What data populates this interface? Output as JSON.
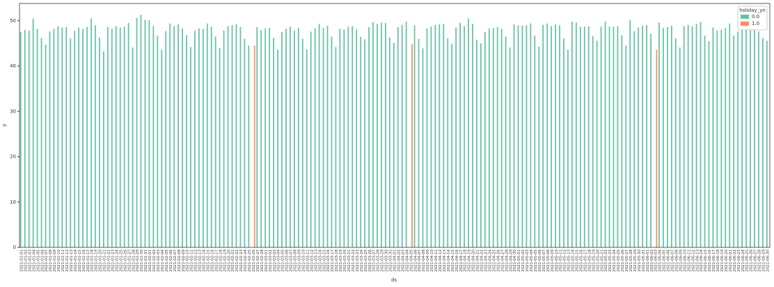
{
  "chart_data": {
    "type": "bar",
    "x_label": "ds",
    "y_label": "y",
    "legend_title": "holiday_yn",
    "legend_position": "upper right",
    "categories": [
      "2021-01-01",
      "2021-01-02",
      "2021-01-03",
      "2021-01-04",
      "2021-01-05",
      "2021-01-06",
      "2021-01-07",
      "2021-01-08",
      "2021-01-09",
      "2021-01-10",
      "2021-01-11",
      "2021-01-12",
      "2021-01-13",
      "2021-01-14",
      "2021-01-15",
      "2021-01-16",
      "2021-01-17",
      "2021-01-18",
      "2021-01-19",
      "2021-01-20",
      "2021-01-21",
      "2021-01-22",
      "2021-01-23",
      "2021-01-24",
      "2021-01-25",
      "2021-01-26",
      "2021-01-27",
      "2021-01-28",
      "2021-01-29",
      "2021-01-30",
      "2021-01-31",
      "2021-02-01",
      "2021-02-02",
      "2021-02-03",
      "2021-02-04",
      "2021-02-05",
      "2021-02-06",
      "2021-02-07",
      "2021-02-08",
      "2021-02-09",
      "2021-02-10",
      "2021-02-11",
      "2021-02-12",
      "2021-02-13",
      "2021-02-14",
      "2021-02-15",
      "2021-02-16",
      "2021-02-17",
      "2021-02-18",
      "2021-02-19",
      "2021-02-20",
      "2021-02-21",
      "2021-02-22",
      "2021-02-23",
      "2021-02-24",
      "2021-02-25",
      "2021-02-26",
      "2021-02-27",
      "2021-02-28",
      "2021-03-01",
      "2021-03-02",
      "2021-03-03",
      "2021-03-04",
      "2021-03-05",
      "2021-03-06",
      "2021-03-07",
      "2021-03-08",
      "2021-03-09",
      "2021-03-10",
      "2021-03-11",
      "2021-03-12",
      "2021-03-13",
      "2021-03-14",
      "2021-03-15",
      "2021-03-16",
      "2021-03-17",
      "2021-03-18",
      "2021-03-19",
      "2021-03-20",
      "2021-03-21",
      "2021-03-22",
      "2021-03-23",
      "2021-03-24",
      "2021-03-25",
      "2021-03-26",
      "2021-03-27",
      "2021-03-28",
      "2021-03-29",
      "2021-03-30",
      "2021-03-31",
      "2021-04-01",
      "2021-04-02",
      "2021-04-03",
      "2021-04-04",
      "2021-04-05",
      "2021-04-06",
      "2021-04-07",
      "2021-04-08",
      "2021-04-09",
      "2021-04-10",
      "2021-04-11",
      "2021-04-12",
      "2021-04-13",
      "2021-04-14",
      "2021-04-15",
      "2021-04-16",
      "2021-04-17",
      "2021-04-18",
      "2021-04-19",
      "2021-04-20",
      "2021-04-21",
      "2021-04-22",
      "2021-04-23",
      "2021-04-24",
      "2021-04-25",
      "2021-04-26",
      "2021-04-27",
      "2021-04-28",
      "2021-04-29",
      "2021-04-30",
      "2021-05-01",
      "2021-05-02",
      "2021-05-03",
      "2021-05-04",
      "2021-05-05",
      "2021-05-06",
      "2021-05-07",
      "2021-05-08",
      "2021-05-09",
      "2021-05-10",
      "2021-05-11",
      "2021-05-12",
      "2021-05-13",
      "2021-05-14",
      "2021-05-15",
      "2021-05-16",
      "2021-05-17",
      "2021-05-18",
      "2021-05-19",
      "2021-05-20",
      "2021-05-21",
      "2021-05-22",
      "2021-05-23",
      "2021-05-24",
      "2021-05-25",
      "2021-05-26",
      "2021-05-27",
      "2021-05-28",
      "2021-05-29",
      "2021-05-30",
      "2021-05-31",
      "2021-06-01",
      "2021-06-02",
      "2021-06-03",
      "2021-06-04",
      "2021-06-05",
      "2021-06-06",
      "2021-06-07",
      "2021-06-08",
      "2021-06-09",
      "2021-06-10",
      "2021-06-11",
      "2021-06-12",
      "2021-06-13",
      "2021-06-14",
      "2021-06-15",
      "2021-06-16",
      "2021-06-17",
      "2021-06-18",
      "2021-06-19",
      "2021-06-20",
      "2021-06-21",
      "2021-06-22",
      "2021-06-23",
      "2021-06-24",
      "2021-06-25",
      "2021-06-26",
      "2021-06-27",
      "2021-06-28",
      "2021-06-29",
      "2021-06-30"
    ],
    "series": [
      {
        "name": "0.0",
        "color": "#66c2a5",
        "values": [
          47.5,
          48,
          47.8,
          50.5,
          48.2,
          46.2,
          44.7,
          47.6,
          48.2,
          48.8,
          48.5,
          48.6,
          46.1,
          47.8,
          48.5,
          48.2,
          48.6,
          50.5,
          49,
          46.3,
          43.2,
          48.6,
          48.2,
          48.8,
          48.5,
          48.7,
          49.5,
          44.1,
          50.6,
          51.3,
          50.2,
          50.1,
          48.8,
          46.7,
          43.6,
          47.7,
          49.4,
          48.8,
          49.2,
          48.3,
          46.8,
          44.2,
          47.8,
          48.3,
          48.2,
          49.4,
          48.7,
          46.5,
          44,
          47.8,
          48.8,
          49,
          49.2,
          48.6,
          46,
          44.5,
          null,
          48.6,
          47.9,
          48.3,
          48.4,
          46.2,
          43.6,
          47.5,
          48.2,
          48.7,
          47.8,
          48.4,
          46,
          43.7,
          47.6,
          48.3,
          49.3,
          48.4,
          48.9,
          46.5,
          44.2,
          48.2,
          48.1,
          48.7,
          48.8,
          48.1,
          46.4,
          45.9,
          48.6,
          49.7,
          49.3,
          49.6,
          49.5,
          46.3,
          45.1,
          48.6,
          49.1,
          49.8,
          null,
          49,
          46,
          43.9,
          48.3,
          48.7,
          49.1,
          49.2,
          49.3,
          46.1,
          44.9,
          48.5,
          49.5,
          48.8,
          50.5,
          49.3,
          45.8,
          45,
          47.5,
          48.3,
          48.4,
          48.6,
          48.2,
          46.5,
          44.1,
          49.2,
          49,
          48.9,
          49,
          49.4,
          46.7,
          44.3,
          49.1,
          49.4,
          48.8,
          49.2,
          49,
          46.1,
          43.6,
          49.8,
          49.6,
          48.7,
          48.7,
          48.8,
          46.6,
          45.6,
          48.7,
          49.8,
          48.7,
          48.7,
          48.8,
          46.8,
          44.5,
          50.1,
          47.7,
          48.5,
          48.9,
          49,
          47.1,
          null,
          49.6,
          48.4,
          48.6,
          48.9,
          46.1,
          44.1,
          48.8,
          49.1,
          48.8,
          49.3,
          49.7,
          46.7,
          45.5,
          48.5,
          47.8,
          48,
          48.4,
          49.4,
          46.7,
          47.6,
          48.2,
          48,
          48.4,
          49.5,
          47.6,
          46.2,
          45.6
        ]
      },
      {
        "name": "1.0",
        "color": "#fc8d62",
        "values": [
          null,
          null,
          null,
          null,
          null,
          null,
          null,
          null,
          null,
          null,
          null,
          null,
          null,
          null,
          null,
          null,
          null,
          null,
          null,
          null,
          null,
          null,
          null,
          null,
          null,
          null,
          null,
          null,
          null,
          null,
          null,
          null,
          null,
          null,
          null,
          null,
          null,
          null,
          null,
          null,
          null,
          null,
          null,
          null,
          null,
          null,
          null,
          null,
          null,
          null,
          null,
          null,
          null,
          null,
          null,
          null,
          44.5,
          null,
          null,
          null,
          null,
          null,
          null,
          null,
          null,
          null,
          null,
          null,
          null,
          null,
          null,
          null,
          null,
          null,
          null,
          null,
          null,
          null,
          null,
          null,
          null,
          null,
          null,
          null,
          null,
          null,
          null,
          null,
          null,
          null,
          null,
          null,
          null,
          null,
          44.8,
          null,
          null,
          null,
          null,
          null,
          null,
          null,
          null,
          null,
          null,
          null,
          null,
          null,
          null,
          null,
          null,
          null,
          null,
          null,
          null,
          null,
          null,
          null,
          null,
          null,
          null,
          null,
          null,
          null,
          null,
          null,
          null,
          null,
          null,
          null,
          null,
          null,
          null,
          null,
          null,
          null,
          null,
          null,
          null,
          null,
          null,
          null,
          null,
          null,
          null,
          null,
          null,
          null,
          null,
          null,
          null,
          null,
          null,
          43.6,
          null,
          null,
          null,
          null,
          null,
          null,
          null,
          null,
          null,
          null,
          null,
          null,
          null,
          null,
          null,
          null,
          null,
          null,
          null,
          null,
          null,
          null,
          null,
          null,
          null,
          null,
          null
        ]
      }
    ],
    "ylim": [
      0,
      53.8
    ],
    "yticks": [
      0,
      10,
      20,
      30,
      40,
      50
    ]
  }
}
